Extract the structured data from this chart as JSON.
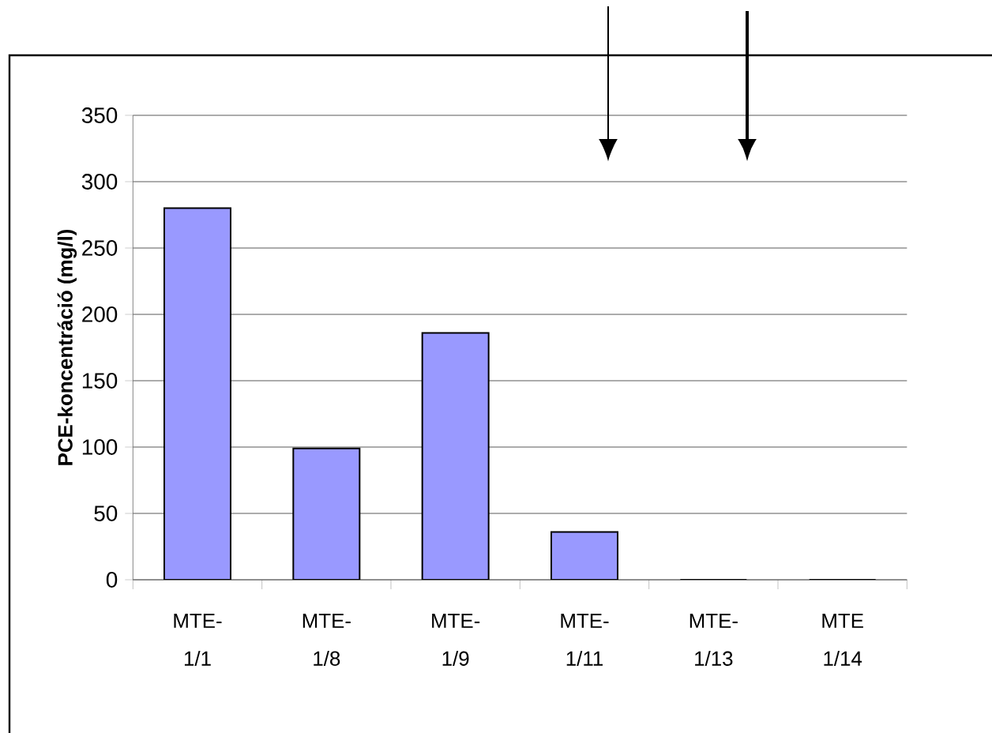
{
  "chart_data": {
    "type": "bar",
    "ylabel": "PCE-koncentráció (mg/l)",
    "categories": [
      "MTE-1/1",
      "MTE-1/8",
      "MTE-1/9",
      "MTE-1/11",
      "MTE-1/13",
      "MTE 1/14"
    ],
    "values": [
      280,
      99,
      186,
      36,
      0,
      0
    ],
    "color": "#9999ff",
    "ylim": [
      0,
      350
    ],
    "yticks": [
      0,
      50,
      100,
      150,
      200,
      250,
      300,
      350
    ],
    "grid": "y"
  }
}
